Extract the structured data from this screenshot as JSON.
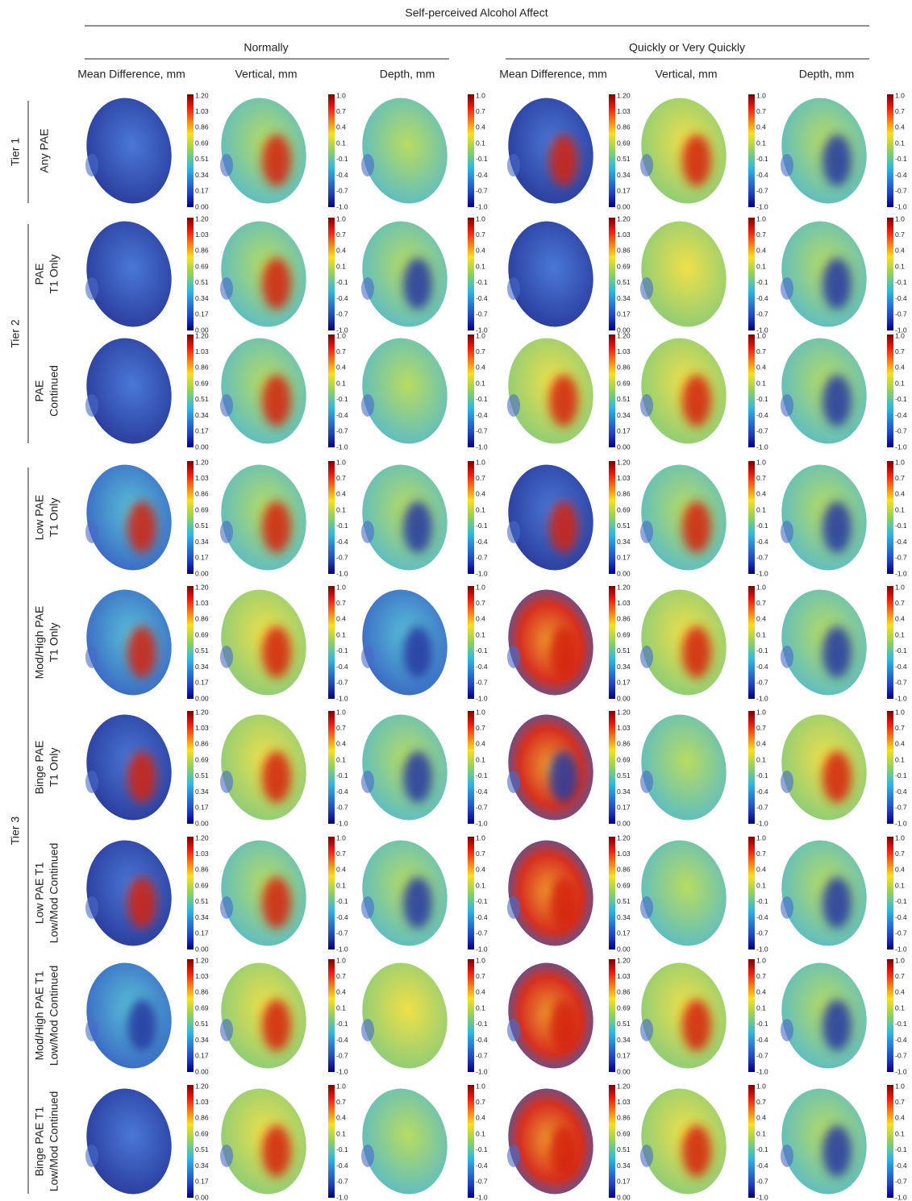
{
  "header": {
    "title": "Self-perceived Alcohol Affect"
  },
  "groups": [
    {
      "title": "Normally",
      "columns": [
        "Mean Difference, mm",
        "Vertical, mm",
        "Depth, mm"
      ]
    },
    {
      "title": "Quickly or Very Quickly",
      "columns": [
        "Mean Difference, mm",
        "Vertical, mm",
        "Depth, mm"
      ]
    }
  ],
  "colorbars": {
    "difference": [
      "1.20",
      "1.03",
      "0.86",
      "0.69",
      "0.51",
      "0.34",
      "0.17",
      "0.00"
    ],
    "signed": [
      "1.0",
      "0.7",
      "0.4",
      "0.1",
      "-0.1",
      "-0.4",
      "-0.7",
      "-1.0"
    ]
  },
  "tiers": [
    {
      "label": "Tier 1",
      "rows": [
        [
          "Any PAE"
        ]
      ]
    },
    {
      "label": "Tier 2",
      "rows": [
        [
          "PAE",
          "T1 Only"
        ],
        [
          "PAE",
          "Continued"
        ]
      ]
    },
    {
      "label": "Tier 3",
      "rows": [
        [
          "Low PAE",
          "T1 Only"
        ],
        [
          "Mod/High PAE",
          "T1 Only"
        ],
        [
          "Binge PAE",
          "T1 Only"
        ],
        [
          "Low PAE T1",
          "Low/Mod Continued"
        ],
        [
          "Mod/High PAE T1",
          "Low/Mod Continued"
        ],
        [
          "Binge PAE T1",
          "Low/Mod Continued"
        ]
      ]
    }
  ]
}
